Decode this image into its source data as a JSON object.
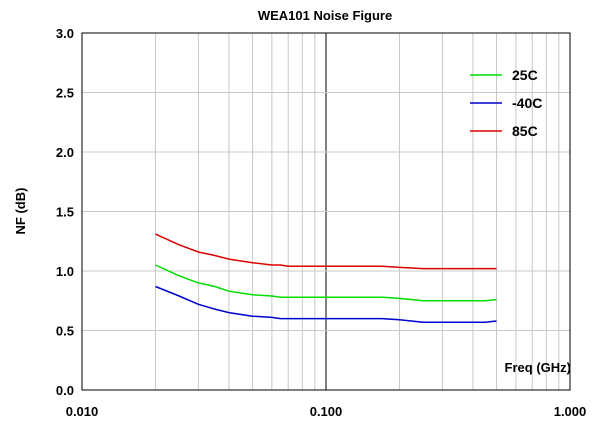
{
  "chart_data": {
    "type": "line",
    "title": "WEA101 Noise Figure",
    "xlabel": "Freq (GHz)",
    "ylabel": "NF (dB)",
    "x_scale": "log",
    "xlim": [
      0.01,
      1.0
    ],
    "ylim": [
      0.0,
      3.0
    ],
    "x_ticks": [
      0.01,
      0.1,
      1.0
    ],
    "x_tick_labels": [
      "0.010",
      "0.100",
      "1.000"
    ],
    "y_ticks": [
      0.0,
      0.5,
      1.0,
      1.5,
      2.0,
      2.5,
      3.0
    ],
    "y_tick_labels": [
      "0.0",
      "0.5",
      "1.0",
      "1.5",
      "2.0",
      "2.5",
      "3.0"
    ],
    "grid": true,
    "legend_position": "top-right",
    "series": [
      {
        "name": "25C",
        "color": "#00dd00",
        "x": [
          0.02,
          0.025,
          0.03,
          0.035,
          0.04,
          0.05,
          0.06,
          0.065,
          0.07,
          0.1,
          0.17,
          0.2,
          0.25,
          0.3,
          0.45,
          0.5
        ],
        "y": [
          1.05,
          0.96,
          0.9,
          0.87,
          0.83,
          0.8,
          0.79,
          0.78,
          0.78,
          0.78,
          0.78,
          0.77,
          0.75,
          0.75,
          0.75,
          0.76
        ]
      },
      {
        "name": "-40C",
        "color": "#0000cc",
        "x": [
          0.02,
          0.025,
          0.03,
          0.035,
          0.04,
          0.05,
          0.06,
          0.065,
          0.07,
          0.1,
          0.17,
          0.2,
          0.25,
          0.3,
          0.45,
          0.5
        ],
        "y": [
          0.87,
          0.79,
          0.72,
          0.68,
          0.65,
          0.62,
          0.61,
          0.6,
          0.6,
          0.6,
          0.6,
          0.59,
          0.57,
          0.57,
          0.57,
          0.58
        ]
      },
      {
        "name": "85C",
        "color": "#dd0000",
        "x": [
          0.02,
          0.025,
          0.03,
          0.035,
          0.04,
          0.05,
          0.06,
          0.065,
          0.07,
          0.1,
          0.17,
          0.2,
          0.25,
          0.3,
          0.45,
          0.5
        ],
        "y": [
          1.31,
          1.22,
          1.16,
          1.13,
          1.1,
          1.07,
          1.05,
          1.05,
          1.04,
          1.04,
          1.04,
          1.03,
          1.02,
          1.02,
          1.02,
          1.02
        ]
      }
    ]
  }
}
